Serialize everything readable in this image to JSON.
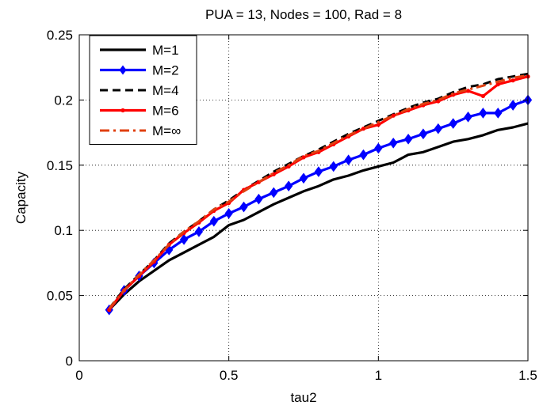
{
  "chart_data": {
    "type": "line",
    "title": "PUA = 13, Nodes = 100, Rad = 8",
    "xlabel": "tau2",
    "ylabel": "Capacity",
    "xlim": [
      0,
      1.5
    ],
    "ylim": [
      0,
      0.25
    ],
    "xticks": [
      0,
      0.5,
      1,
      1.5
    ],
    "xtick_labels": [
      "0",
      "0.5",
      "1",
      "1.5"
    ],
    "yticks": [
      0,
      0.05,
      0.1,
      0.15,
      0.2,
      0.25
    ],
    "ytick_labels": [
      "0",
      "0.05",
      "0.1",
      "0.15",
      "0.2",
      "0.25"
    ],
    "grid": true,
    "legend_position": "top-left",
    "x": [
      0.1,
      0.15,
      0.2,
      0.25,
      0.3,
      0.35,
      0.4,
      0.45,
      0.5,
      0.55,
      0.6,
      0.65,
      0.7,
      0.75,
      0.8,
      0.85,
      0.9,
      0.95,
      1.0,
      1.05,
      1.1,
      1.15,
      1.2,
      1.25,
      1.3,
      1.35,
      1.4,
      1.45,
      1.5
    ],
    "series": [
      {
        "name": "M=1",
        "color": "#000000",
        "style": "solid",
        "marker": "none",
        "values": [
          0.039,
          0.051,
          0.061,
          0.069,
          0.077,
          0.083,
          0.089,
          0.095,
          0.104,
          0.108,
          0.114,
          0.12,
          0.125,
          0.13,
          0.134,
          0.139,
          0.142,
          0.146,
          0.149,
          0.152,
          0.158,
          0.16,
          0.164,
          0.168,
          0.17,
          0.173,
          0.177,
          0.179,
          0.182
        ]
      },
      {
        "name": "M=2",
        "color": "#0000ff",
        "style": "solid",
        "marker": "diamond",
        "values": [
          0.039,
          0.054,
          0.065,
          0.075,
          0.085,
          0.093,
          0.099,
          0.107,
          0.113,
          0.118,
          0.124,
          0.129,
          0.134,
          0.14,
          0.145,
          0.149,
          0.154,
          0.158,
          0.163,
          0.167,
          0.17,
          0.174,
          0.178,
          0.182,
          0.187,
          0.19,
          0.19,
          0.196,
          0.2
        ]
      },
      {
        "name": "M=4",
        "color": "#000000",
        "style": "dashed",
        "marker": "none",
        "values": [
          0.04,
          0.055,
          0.066,
          0.077,
          0.09,
          0.099,
          0.107,
          0.116,
          0.123,
          0.131,
          0.138,
          0.145,
          0.151,
          0.157,
          0.162,
          0.168,
          0.174,
          0.179,
          0.184,
          0.189,
          0.194,
          0.198,
          0.201,
          0.206,
          0.21,
          0.212,
          0.216,
          0.218,
          0.22
        ]
      },
      {
        "name": "M=6",
        "color": "#ff0000",
        "style": "solid",
        "marker": "dot",
        "values": [
          0.039,
          0.054,
          0.065,
          0.076,
          0.089,
          0.098,
          0.106,
          0.115,
          0.121,
          0.131,
          0.137,
          0.143,
          0.149,
          0.156,
          0.16,
          0.166,
          0.172,
          0.178,
          0.181,
          0.188,
          0.192,
          0.196,
          0.199,
          0.204,
          0.207,
          0.203,
          0.212,
          0.215,
          0.218
        ]
      },
      {
        "name": "M=∞",
        "color": "#e04010",
        "style": "dashdot",
        "marker": "none",
        "values": [
          0.04,
          0.054,
          0.066,
          0.077,
          0.089,
          0.099,
          0.107,
          0.116,
          0.122,
          0.13,
          0.137,
          0.144,
          0.15,
          0.157,
          0.161,
          0.167,
          0.173,
          0.178,
          0.183,
          0.188,
          0.193,
          0.197,
          0.2,
          0.205,
          0.208,
          0.211,
          0.214,
          0.217,
          0.219
        ]
      }
    ]
  }
}
